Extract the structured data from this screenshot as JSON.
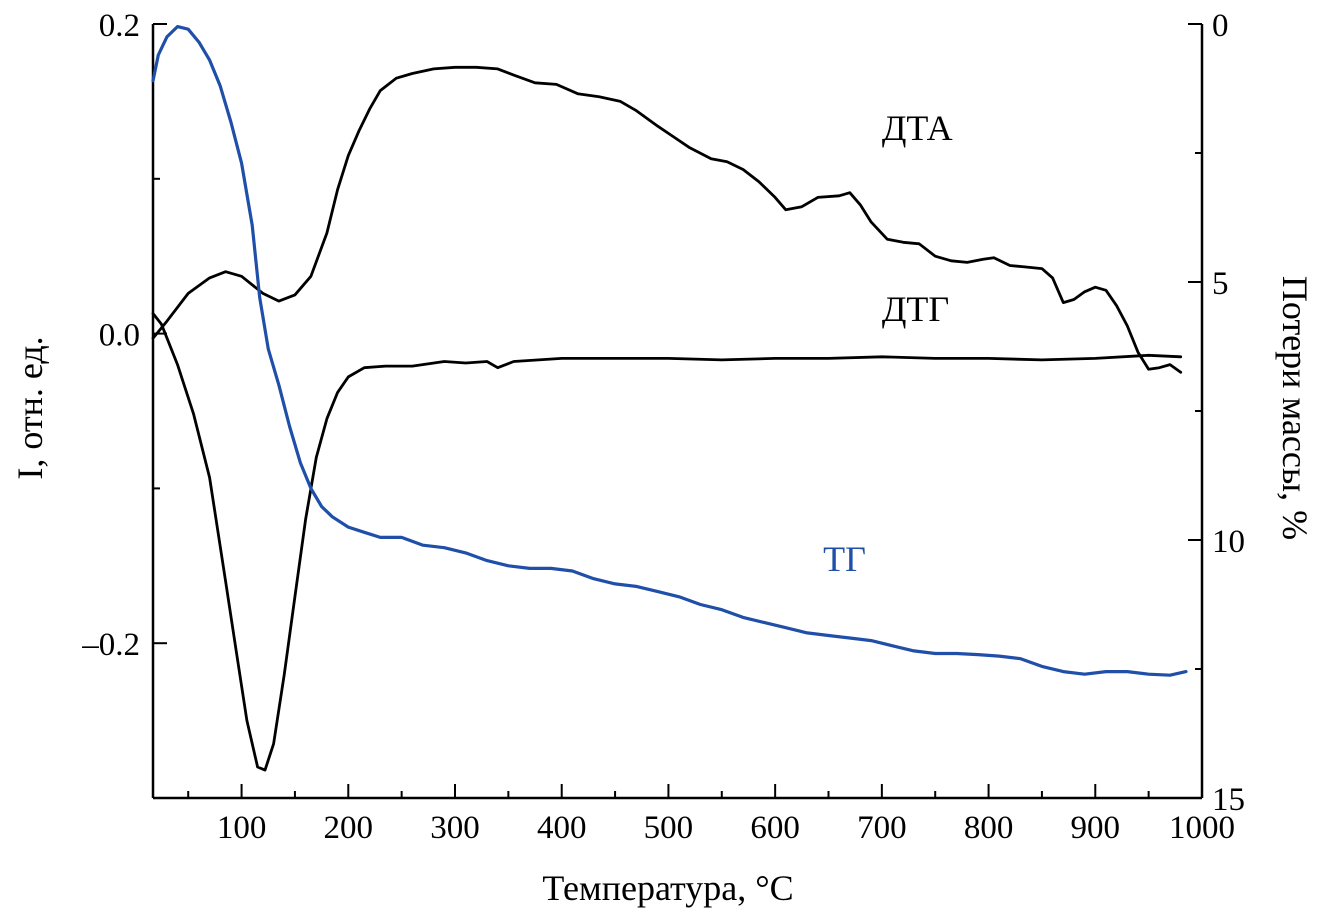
{
  "chart_data": {
    "type": "line",
    "title": "",
    "xlabel": "Температура, °C",
    "ylabel_left": "I, отн. ед.",
    "ylabel_right": "Потери массы, %",
    "xlim": [
      17,
      1000
    ],
    "ylim_left": [
      -0.3,
      0.2
    ],
    "ylim_right": [
      15,
      0
    ],
    "grid": false,
    "x_ticks": [
      {
        "value": 100,
        "label": "100"
      },
      {
        "value": 200,
        "label": "200"
      },
      {
        "value": 300,
        "label": "300"
      },
      {
        "value": 400,
        "label": "400"
      },
      {
        "value": 500,
        "label": "500"
      },
      {
        "value": 600,
        "label": "600"
      },
      {
        "value": 700,
        "label": "700"
      },
      {
        "value": 800,
        "label": "800"
      },
      {
        "value": 900,
        "label": "900"
      },
      {
        "value": 1000,
        "label": "1000"
      }
    ],
    "x_minor_ticks": [
      50,
      150,
      250,
      350,
      450,
      550,
      650,
      750,
      850,
      950
    ],
    "y_left_ticks": [
      {
        "value": 0.2,
        "label": "0.2"
      },
      {
        "value": 0.0,
        "label": "0.0"
      },
      {
        "value": -0.2,
        "label": "–0.2"
      }
    ],
    "y_left_minor_ticks": [
      0.1,
      -0.1
    ],
    "y_right_ticks": [
      {
        "value": 0,
        "label": "0"
      },
      {
        "value": 5,
        "label": "5"
      },
      {
        "value": 10,
        "label": "10"
      },
      {
        "value": 15,
        "label": "15"
      }
    ],
    "y_right_minor_ticks": [
      2.5,
      7.5,
      12.5
    ],
    "series": [
      {
        "name": "ДТА",
        "label": "ДТА",
        "axis": "left",
        "color": "#000000",
        "label_position": {
          "x": 700,
          "y": 0.125
        },
        "points": [
          [
            17,
            -0.003
          ],
          [
            30,
            0.008
          ],
          [
            50,
            0.026
          ],
          [
            70,
            0.036
          ],
          [
            85,
            0.04
          ],
          [
            100,
            0.037
          ],
          [
            120,
            0.026
          ],
          [
            135,
            0.021
          ],
          [
            150,
            0.025
          ],
          [
            165,
            0.037
          ],
          [
            180,
            0.065
          ],
          [
            190,
            0.093
          ],
          [
            200,
            0.115
          ],
          [
            210,
            0.131
          ],
          [
            220,
            0.145
          ],
          [
            230,
            0.157
          ],
          [
            245,
            0.165
          ],
          [
            260,
            0.168
          ],
          [
            280,
            0.171
          ],
          [
            300,
            0.172
          ],
          [
            320,
            0.172
          ],
          [
            340,
            0.171
          ],
          [
            355,
            0.167
          ],
          [
            375,
            0.162
          ],
          [
            395,
            0.161
          ],
          [
            415,
            0.155
          ],
          [
            435,
            0.153
          ],
          [
            455,
            0.15
          ],
          [
            470,
            0.144
          ],
          [
            490,
            0.134
          ],
          [
            505,
            0.127
          ],
          [
            520,
            0.12
          ],
          [
            540,
            0.113
          ],
          [
            555,
            0.111
          ],
          [
            570,
            0.106
          ],
          [
            585,
            0.098
          ],
          [
            600,
            0.088
          ],
          [
            610,
            0.08
          ],
          [
            625,
            0.082
          ],
          [
            640,
            0.088
          ],
          [
            660,
            0.089
          ],
          [
            670,
            0.091
          ],
          [
            680,
            0.083
          ],
          [
            690,
            0.072
          ],
          [
            705,
            0.061
          ],
          [
            720,
            0.059
          ],
          [
            735,
            0.058
          ],
          [
            750,
            0.05
          ],
          [
            765,
            0.047
          ],
          [
            780,
            0.046
          ],
          [
            795,
            0.048
          ],
          [
            805,
            0.049
          ],
          [
            820,
            0.044
          ],
          [
            835,
            0.043
          ],
          [
            850,
            0.042
          ],
          [
            860,
            0.036
          ],
          [
            870,
            0.02
          ],
          [
            880,
            0.022
          ],
          [
            890,
            0.027
          ],
          [
            900,
            0.03
          ],
          [
            910,
            0.028
          ],
          [
            920,
            0.018
          ],
          [
            930,
            0.005
          ],
          [
            940,
            -0.012
          ],
          [
            950,
            -0.023
          ],
          [
            960,
            -0.022
          ],
          [
            970,
            -0.02
          ],
          [
            980,
            -0.025
          ]
        ]
      },
      {
        "name": "ДТГ",
        "label": "ДТГ",
        "axis": "left",
        "color": "#000000",
        "label_position": {
          "x": 700,
          "y": 0.008
        },
        "points": [
          [
            17,
            0.013
          ],
          [
            25,
            0.006
          ],
          [
            40,
            -0.02
          ],
          [
            55,
            -0.052
          ],
          [
            70,
            -0.093
          ],
          [
            85,
            -0.16
          ],
          [
            95,
            -0.205
          ],
          [
            105,
            -0.25
          ],
          [
            115,
            -0.28
          ],
          [
            122,
            -0.282
          ],
          [
            130,
            -0.265
          ],
          [
            140,
            -0.22
          ],
          [
            150,
            -0.17
          ],
          [
            160,
            -0.12
          ],
          [
            170,
            -0.08
          ],
          [
            180,
            -0.055
          ],
          [
            190,
            -0.038
          ],
          [
            200,
            -0.028
          ],
          [
            215,
            -0.022
          ],
          [
            235,
            -0.021
          ],
          [
            260,
            -0.021
          ],
          [
            290,
            -0.018
          ],
          [
            310,
            -0.019
          ],
          [
            330,
            -0.018
          ],
          [
            340,
            -0.022
          ],
          [
            355,
            -0.018
          ],
          [
            400,
            -0.016
          ],
          [
            450,
            -0.016
          ],
          [
            500,
            -0.016
          ],
          [
            550,
            -0.017
          ],
          [
            600,
            -0.016
          ],
          [
            650,
            -0.016
          ],
          [
            700,
            -0.015
          ],
          [
            750,
            -0.016
          ],
          [
            800,
            -0.016
          ],
          [
            850,
            -0.017
          ],
          [
            900,
            -0.016
          ],
          [
            950,
            -0.014
          ],
          [
            980,
            -0.015
          ]
        ]
      },
      {
        "name": "ТГ",
        "label": "ТГ",
        "axis": "right",
        "color": "#1f4fa8",
        "label_position": {
          "x": 645,
          "y_right": 10.6
        },
        "points": [
          [
            17,
            1.1
          ],
          [
            22,
            0.6
          ],
          [
            30,
            0.25
          ],
          [
            40,
            0.05
          ],
          [
            50,
            0.1
          ],
          [
            60,
            0.35
          ],
          [
            70,
            0.7
          ],
          [
            80,
            1.2
          ],
          [
            90,
            1.9
          ],
          [
            100,
            2.7
          ],
          [
            110,
            3.9
          ],
          [
            117,
            5.3
          ],
          [
            125,
            6.3
          ],
          [
            135,
            7.0
          ],
          [
            145,
            7.8
          ],
          [
            155,
            8.5
          ],
          [
            165,
            9.0
          ],
          [
            175,
            9.35
          ],
          [
            185,
            9.55
          ],
          [
            200,
            9.75
          ],
          [
            215,
            9.85
          ],
          [
            230,
            9.95
          ],
          [
            250,
            9.95
          ],
          [
            270,
            10.1
          ],
          [
            290,
            10.15
          ],
          [
            310,
            10.25
          ],
          [
            330,
            10.4
          ],
          [
            350,
            10.5
          ],
          [
            370,
            10.55
          ],
          [
            390,
            10.55
          ],
          [
            410,
            10.6
          ],
          [
            430,
            10.75
          ],
          [
            450,
            10.85
          ],
          [
            470,
            10.9
          ],
          [
            490,
            11.0
          ],
          [
            510,
            11.1
          ],
          [
            530,
            11.25
          ],
          [
            550,
            11.35
          ],
          [
            570,
            11.5
          ],
          [
            590,
            11.6
          ],
          [
            610,
            11.7
          ],
          [
            630,
            11.8
          ],
          [
            650,
            11.85
          ],
          [
            670,
            11.9
          ],
          [
            690,
            11.95
          ],
          [
            710,
            12.05
          ],
          [
            730,
            12.15
          ],
          [
            750,
            12.2
          ],
          [
            770,
            12.2
          ],
          [
            790,
            12.22
          ],
          [
            810,
            12.25
          ],
          [
            830,
            12.3
          ],
          [
            850,
            12.45
          ],
          [
            870,
            12.55
          ],
          [
            890,
            12.6
          ],
          [
            910,
            12.55
          ],
          [
            930,
            12.55
          ],
          [
            950,
            12.6
          ],
          [
            970,
            12.62
          ],
          [
            985,
            12.55
          ]
        ]
      }
    ]
  }
}
